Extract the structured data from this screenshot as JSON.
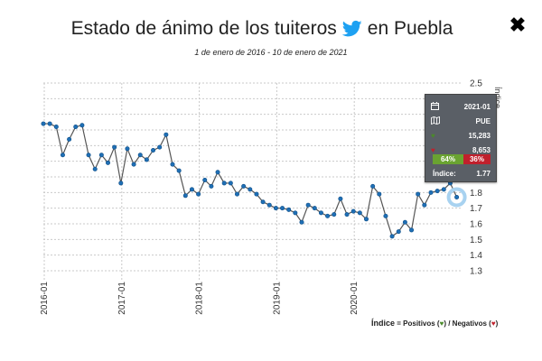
{
  "header": {
    "title_before": "Estado de ánimo de los tuiteros",
    "title_after": "en Puebla",
    "subtitle": "1 de enero de 2016 - 10 de enero de 2021",
    "close_label": "✖"
  },
  "tooltip": {
    "date": "2021-01",
    "state": "PUE",
    "positives": "15,283",
    "negatives": "8,653",
    "pct_positive": "64%",
    "pct_negative": "36%",
    "index_label": "Índice:",
    "index_value": "1.77"
  },
  "legend_note": {
    "index_word": "Índice",
    "eq": " = ",
    "pos_word": "Positivos (",
    "close_paren": ")",
    "slash": " / Negativos (",
    "close_paren2": ")"
  },
  "colors": {
    "line": "#555555",
    "point": "#1f6fb5",
    "highlight": "#a8d2f0",
    "grid": "#c9c9c9",
    "twitter": "#1da1f2"
  },
  "chart_data": {
    "type": "line",
    "title": "Estado de ánimo de los tuiteros en Puebla",
    "subtitle": "1 de enero de 2016 - 10 de enero de 2021",
    "ylabel": "Índice",
    "ylim": [
      1.3,
      2.5
    ],
    "yticks": [
      1.3,
      1.4,
      1.5,
      1.6,
      1.7,
      1.8,
      1.9,
      2.0,
      2.1,
      2.2,
      2.3,
      2.4,
      2.5
    ],
    "xticks": [
      "2016-01",
      "2017-01",
      "2018-01",
      "2019-01",
      "2020-01"
    ],
    "grid": true,
    "series": [
      {
        "values": [
          2.24,
          2.24,
          2.22,
          2.04,
          2.14,
          2.22,
          2.23,
          2.04,
          1.95,
          2.04,
          1.99,
          2.09,
          1.86,
          2.08,
          1.98,
          2.04,
          2.01,
          2.07,
          2.09,
          2.17,
          1.98,
          1.94,
          1.78,
          1.82,
          1.79,
          1.88,
          1.84,
          1.93,
          1.86,
          1.86,
          1.79,
          1.84,
          1.82,
          1.79,
          1.74,
          1.72,
          1.7,
          1.7,
          1.69,
          1.67,
          1.61,
          1.72,
          1.7,
          1.67,
          1.65,
          1.66,
          1.76,
          1.66,
          1.68,
          1.67,
          1.63,
          1.84,
          1.79,
          1.65,
          1.52,
          1.55,
          1.61,
          1.56,
          1.79,
          1.72,
          1.8,
          1.81,
          1.82,
          1.86,
          1.77
        ]
      }
    ]
  }
}
